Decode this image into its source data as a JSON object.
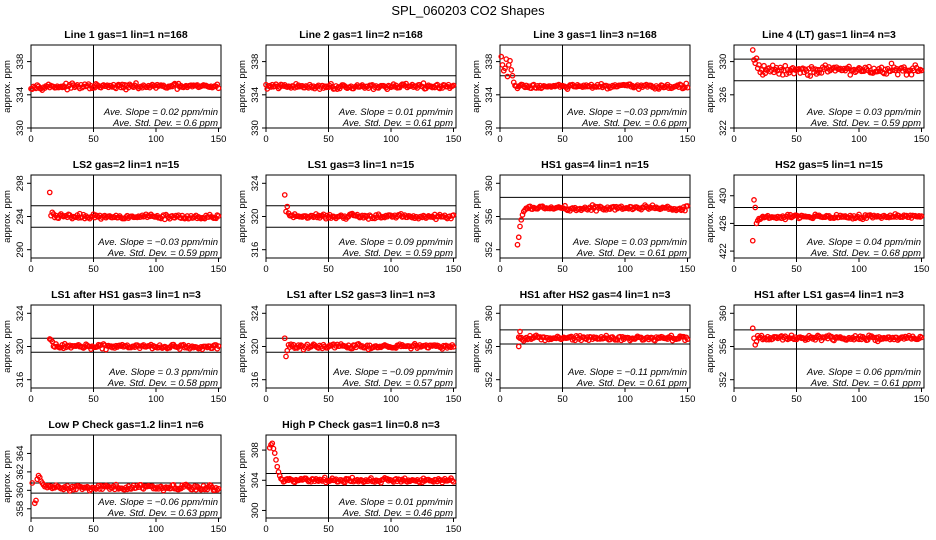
{
  "figure": {
    "title": "SPL_060203  CO2 Shapes",
    "ylabel": "approx. ppm",
    "colors": {
      "points": "#ff0000",
      "lines": "#000000"
    }
  },
  "chart_data": [
    {
      "type": "scatter",
      "title": "Line 1 gas=1 lin=1 n=168",
      "xlim": [
        0,
        152
      ],
      "ylim": [
        330,
        340
      ],
      "yticks": [
        330,
        334,
        338
      ],
      "xticks": [
        0,
        50,
        100,
        150
      ],
      "hlines": [
        333.7,
        336.3
      ],
      "vline": 50,
      "mean": 335,
      "series_x_range": [
        0,
        150
      ],
      "noise": 0.15,
      "transient": [],
      "slope_text": "Ave. Slope =  0.02  ppm/min",
      "sd_text": "Ave. Std. Dev. =  0.6  ppm"
    },
    {
      "type": "scatter",
      "title": "Line 2 gas=1 lin=2 n=168",
      "xlim": [
        0,
        152
      ],
      "ylim": [
        330,
        340
      ],
      "yticks": [
        330,
        334,
        338
      ],
      "xticks": [
        0,
        50,
        100,
        150
      ],
      "hlines": [
        333.7,
        336.3
      ],
      "vline": 50,
      "mean": 335,
      "series_x_range": [
        0,
        150
      ],
      "noise": 0.15,
      "transient": [],
      "slope_text": "Ave. Slope =  0.01  ppm/min",
      "sd_text": "Ave. Std. Dev. =  0.61  ppm"
    },
    {
      "type": "scatter",
      "title": "Line 3 gas=1 lin=3 n=168",
      "xlim": [
        0,
        152
      ],
      "ylim": [
        330,
        340
      ],
      "yticks": [
        330,
        334,
        338
      ],
      "xticks": [
        0,
        50,
        100,
        150
      ],
      "hlines": [
        333.7,
        336.3
      ],
      "vline": 50,
      "mean": 335,
      "series_x_range": [
        12,
        150
      ],
      "noise": 0.15,
      "transient": [
        [
          1,
          338.6
        ],
        [
          2,
          337.6
        ],
        [
          3,
          336.9
        ],
        [
          4,
          337.2
        ],
        [
          5,
          338.3
        ],
        [
          6,
          336.2
        ],
        [
          7,
          337.6
        ],
        [
          8,
          338.1
        ],
        [
          9,
          337.0
        ],
        [
          10,
          336.3
        ],
        [
          11,
          335.5
        ]
      ],
      "slope_text": "Ave. Slope =  −0.03  ppm/min",
      "sd_text": "Ave. Std. Dev. =  0.6  ppm"
    },
    {
      "type": "scatter",
      "title": "Line 4 (LT) gas=1 lin=4 n=3",
      "xlim": [
        0,
        152
      ],
      "ylim": [
        322,
        332
      ],
      "yticks": [
        322,
        326,
        330
      ],
      "xticks": [
        0,
        50,
        100,
        150
      ],
      "hlines": [
        327.7,
        330.3
      ],
      "vline": 50,
      "mean": 329,
      "series_x_range": [
        26,
        150
      ],
      "noise": 0.3,
      "transient": [
        [
          15,
          331.4
        ],
        [
          16,
          330.2
        ],
        [
          17,
          329.8
        ],
        [
          18,
          330.4
        ],
        [
          19,
          329.2
        ],
        [
          20,
          329.6
        ],
        [
          21,
          328.7
        ],
        [
          22,
          329.0
        ],
        [
          23,
          328.4
        ],
        [
          24,
          329.5
        ],
        [
          25,
          328.6
        ]
      ],
      "slope_text": "Ave. Slope =  0.03  ppm/min",
      "sd_text": "Ave. Std. Dev. =  0.59  ppm"
    },
    {
      "type": "scatter",
      "title": "LS2 gas=2 lin=1 n=15",
      "xlim": [
        0,
        152
      ],
      "ylim": [
        289,
        299
      ],
      "yticks": [
        290,
        294,
        298
      ],
      "xticks": [
        0,
        50,
        100,
        150
      ],
      "hlines": [
        292.7,
        295.3
      ],
      "vline": 50,
      "mean": 294,
      "series_x_range": [
        19,
        150
      ],
      "noise": 0.15,
      "transient": [
        [
          15,
          296.9
        ],
        [
          16,
          294.1
        ],
        [
          17,
          294.5
        ],
        [
          18,
          294.3
        ]
      ],
      "slope_text": "Ave. Slope =  −0.03  ppm/min",
      "sd_text": "Ave. Std. Dev. =  0.59  ppm"
    },
    {
      "type": "scatter",
      "title": "LS1 gas=3 lin=1 n=15",
      "xlim": [
        0,
        152
      ],
      "ylim": [
        315,
        325
      ],
      "yticks": [
        316,
        320,
        324
      ],
      "xticks": [
        0,
        50,
        100,
        150
      ],
      "hlines": [
        318.7,
        321.3
      ],
      "vline": 50,
      "mean": 320,
      "series_x_range": [
        20,
        150
      ],
      "noise": 0.15,
      "transient": [
        [
          15,
          322.6
        ],
        [
          16,
          320.6
        ],
        [
          17,
          321.2
        ],
        [
          18,
          320.4
        ],
        [
          19,
          320.1
        ]
      ],
      "slope_text": "Ave. Slope =  0.09  ppm/min",
      "sd_text": "Ave. Std. Dev. =  0.59  ppm"
    },
    {
      "type": "scatter",
      "title": "HS1 gas=4 lin=1 n=15",
      "xlim": [
        0,
        152
      ],
      "ylim": [
        351,
        361
      ],
      "yticks": [
        352,
        356,
        360
      ],
      "xticks": [
        0,
        50,
        100,
        150
      ],
      "hlines": [
        355.7,
        358.3
      ],
      "vline": 50,
      "mean": 357,
      "series_x_range": [
        22,
        150
      ],
      "noise": 0.15,
      "transient": [
        [
          14,
          352.6
        ],
        [
          15,
          353.5
        ],
        [
          16,
          354.8
        ],
        [
          17,
          355.6
        ],
        [
          18,
          356.2
        ],
        [
          19,
          356.6
        ],
        [
          20,
          356.8
        ],
        [
          21,
          357.0
        ]
      ],
      "slope_text": "Ave. Slope =  0.03  ppm/min",
      "sd_text": "Ave. Std. Dev. =  0.61  ppm"
    },
    {
      "type": "scatter",
      "title": "HS2 gas=5 lin=1 n=15",
      "xlim": [
        0,
        152
      ],
      "ylim": [
        421,
        433
      ],
      "yticks": [
        422,
        426,
        430
      ],
      "xticks": [
        0,
        50,
        100,
        150
      ],
      "hlines": [
        425.7,
        428.3
      ],
      "vline": 50,
      "mean": 427,
      "series_x_range": [
        24,
        150
      ],
      "noise": 0.15,
      "transient": [
        [
          15,
          423.5
        ],
        [
          16,
          429.4
        ],
        [
          17,
          428.3
        ],
        [
          18,
          426.0
        ],
        [
          19,
          426.4
        ],
        [
          20,
          426.7
        ],
        [
          21,
          426.6
        ],
        [
          22,
          426.8
        ],
        [
          23,
          427.0
        ]
      ],
      "slope_text": "Ave. Slope =  0.04  ppm/min",
      "sd_text": "Ave. Std. Dev. =  0.68  ppm"
    },
    {
      "type": "scatter",
      "title": "LS1 after HS1 gas=3 lin=1 n=3",
      "xlim": [
        0,
        152
      ],
      "ylim": [
        315,
        325
      ],
      "yticks": [
        316,
        320,
        324
      ],
      "xticks": [
        0,
        50,
        100,
        150
      ],
      "hlines": [
        319.3,
        321.0
      ],
      "vline": 50,
      "mean": 320,
      "series_x_range": [
        18,
        150
      ],
      "noise": 0.15,
      "transient": [
        [
          15,
          320.9
        ],
        [
          16,
          320.8
        ],
        [
          17,
          320.6
        ]
      ],
      "slope_text": "Ave. Slope =  0.3  ppm/min",
      "sd_text": "Ave. Std. Dev. =  0.58  ppm"
    },
    {
      "type": "scatter",
      "title": "LS1 after LS2 gas=3 lin=1 n=3",
      "xlim": [
        0,
        152
      ],
      "ylim": [
        315,
        325
      ],
      "yticks": [
        316,
        320,
        324
      ],
      "xticks": [
        0,
        50,
        100,
        150
      ],
      "hlines": [
        319.3,
        321.0
      ],
      "vline": 50,
      "mean": 320,
      "series_x_range": [
        19,
        150
      ],
      "noise": 0.15,
      "transient": [
        [
          15,
          321.0
        ],
        [
          16,
          318.8
        ],
        [
          17,
          319.5
        ],
        [
          18,
          320.2
        ]
      ],
      "slope_text": "Ave. Slope =  −0.09  ppm/min",
      "sd_text": "Ave. Std. Dev. =  0.57  ppm"
    },
    {
      "type": "scatter",
      "title": "HS1 after HS2 gas=4 lin=1 n=3",
      "xlim": [
        0,
        152
      ],
      "ylim": [
        351,
        361
      ],
      "yticks": [
        352,
        356,
        360
      ],
      "xticks": [
        0,
        50,
        100,
        150
      ],
      "hlines": [
        356.3,
        358.0
      ],
      "vline": 50,
      "mean": 357,
      "series_x_range": [
        15,
        150
      ],
      "noise": 0.15,
      "transient": [
        [
          15,
          356.0
        ],
        [
          16,
          357.8
        ]
      ],
      "slope_text": "Ave. Slope =  −0.11  ppm/min",
      "sd_text": "Ave. Std. Dev. =  0.61  ppm"
    },
    {
      "type": "scatter",
      "title": "HS1 after LS1 gas=4 lin=1 n=3",
      "xlim": [
        0,
        152
      ],
      "ylim": [
        351,
        361
      ],
      "yticks": [
        352,
        356,
        360
      ],
      "xticks": [
        0,
        50,
        100,
        150
      ],
      "hlines": [
        355.7,
        358.0
      ],
      "vline": 50,
      "mean": 357,
      "series_x_range": [
        19,
        150
      ],
      "noise": 0.15,
      "transient": [
        [
          15,
          358.2
        ],
        [
          16,
          357.0
        ],
        [
          17,
          356.2
        ],
        [
          18,
          356.6
        ]
      ],
      "slope_text": "Ave. Slope =  0.06  ppm/min",
      "sd_text": "Ave. Std. Dev. =  0.61  ppm"
    },
    {
      "type": "scatter",
      "title": "Low P Check gas=1.2 lin=1 n=6",
      "xlim": [
        0,
        152
      ],
      "ylim": [
        357,
        366
      ],
      "yticks": [
        358,
        360,
        362,
        364
      ],
      "xticks": [
        0,
        50,
        100,
        150
      ],
      "hlines": [
        359.7,
        360.8
      ],
      "vline": 50,
      "mean": 360.3,
      "series_x_range": [
        14,
        150
      ],
      "noise": 0.15,
      "transient": [
        [
          1,
          360.8
        ],
        [
          3,
          358.6
        ],
        [
          4,
          358.9
        ],
        [
          5,
          361.2
        ],
        [
          6,
          361.6
        ],
        [
          7,
          361.4
        ],
        [
          8,
          361.0
        ],
        [
          9,
          360.8
        ],
        [
          10,
          360.6
        ],
        [
          11,
          360.4
        ],
        [
          12,
          360.5
        ],
        [
          13,
          360.3
        ]
      ],
      "slope_text": "Ave. Slope =  −0.06  ppm/min",
      "sd_text": "Ave. Std. Dev. =  0.63  ppm"
    },
    {
      "type": "scatter",
      "title": "High P Check gas=1 lin=0.8 n=3",
      "xlim": [
        0,
        152
      ],
      "ylim": [
        299,
        310
      ],
      "yticks": [
        300,
        304,
        308
      ],
      "xticks": [
        0,
        50,
        100,
        150
      ],
      "hlines": [
        303.3,
        304.9
      ],
      "vline": 50,
      "mean": 304,
      "series_x_range": [
        13,
        150
      ],
      "noise": 0.15,
      "transient": [
        [
          3,
          308.3
        ],
        [
          4,
          308.7
        ],
        [
          5,
          308.9
        ],
        [
          6,
          308.2
        ],
        [
          7,
          307.6
        ],
        [
          8,
          306.7
        ],
        [
          9,
          305.8
        ],
        [
          10,
          305.1
        ],
        [
          11,
          304.6
        ],
        [
          12,
          304.2
        ]
      ],
      "slope_text": "Ave. Slope =  0.01  ppm/min",
      "sd_text": "Ave. Std. Dev. =  0.46  ppm"
    }
  ]
}
